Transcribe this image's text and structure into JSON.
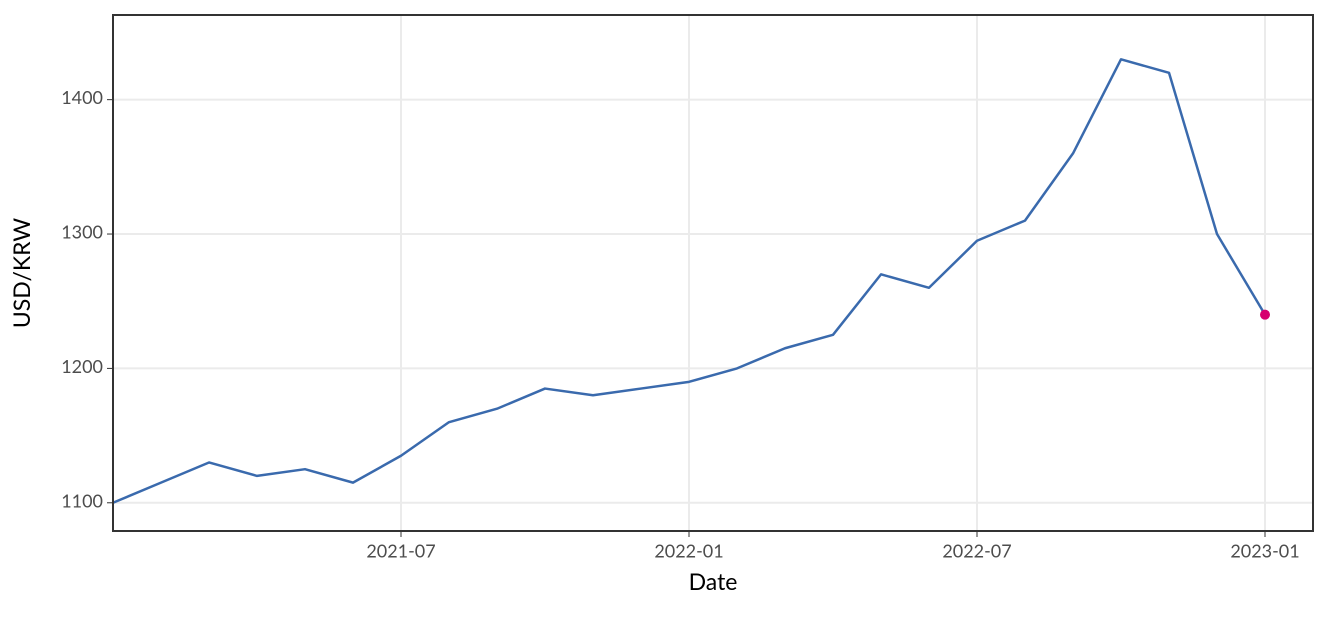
{
  "chart_data": {
    "type": "line",
    "x_label": "Date",
    "y_label": "USD/KRW",
    "x": [
      "2021-01",
      "2021-02",
      "2021-03",
      "2021-04",
      "2021-05",
      "2021-06",
      "2021-07",
      "2021-08",
      "2021-09",
      "2021-10",
      "2021-11",
      "2021-12",
      "2022-01",
      "2022-02",
      "2022-03",
      "2022-04",
      "2022-05",
      "2022-06",
      "2022-07",
      "2022-08",
      "2022-09",
      "2022-10",
      "2022-11",
      "2022-12",
      "2023-01"
    ],
    "series": [
      {
        "color": "#3a6aad",
        "highlight_color": "#d6006f",
        "values": [
          1100,
          1115,
          1130,
          1120,
          1125,
          1115,
          1135,
          1160,
          1170,
          1185,
          1180,
          1185,
          1190,
          1200,
          1215,
          1225,
          1270,
          1260,
          1295,
          1310,
          1360,
          1430,
          1420,
          1300,
          1240
        ]
      }
    ],
    "xlim": [
      "2021-01",
      "2023-02"
    ],
    "xticks": [
      "2021-07",
      "2022-01",
      "2022-07",
      "2023-01"
    ],
    "ylim": [
      1079,
      1463
    ],
    "yticks": [
      1100,
      1200,
      1300,
      1400
    ],
    "grid": true
  }
}
